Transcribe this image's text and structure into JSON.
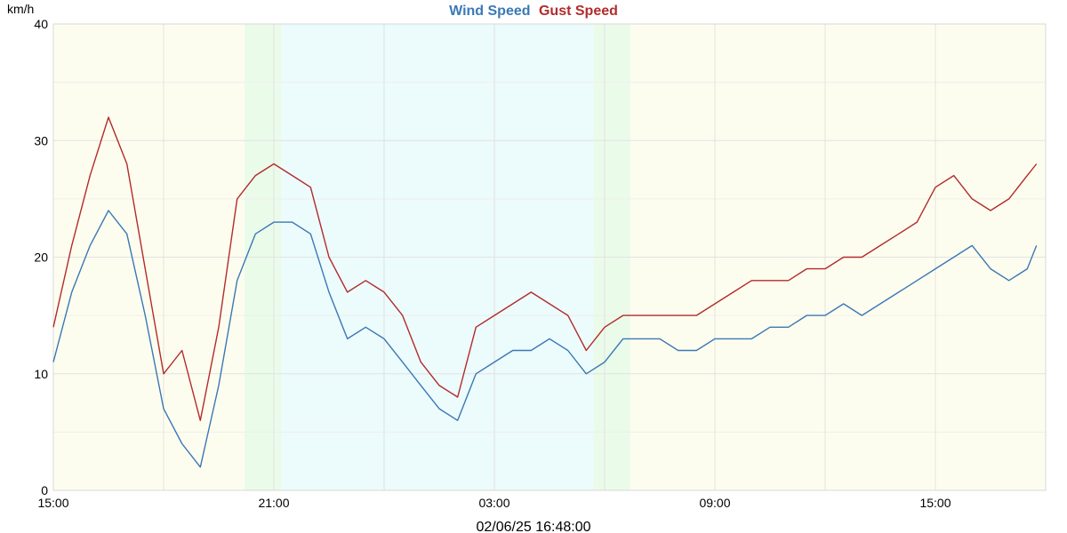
{
  "legend": {
    "wind": "Wind Speed",
    "gust": "Gust Speed"
  },
  "footer": {
    "timestamp": "02/06/25 16:48:00"
  },
  "colors": {
    "wind": "#3a78b5",
    "gust": "#b32b2b",
    "grid": "#e2e2e2",
    "day_band": "#fdfdef",
    "night_band": "#ecfbfb",
    "twilight_band": "#eafbea",
    "axis_text": "#000000"
  },
  "chart_data": {
    "type": "line",
    "title": "",
    "ylabel": "km/h",
    "xlabel": "",
    "ylim": [
      0,
      40
    ],
    "y_ticks": [
      0,
      10,
      20,
      30,
      40
    ],
    "x_range_hours": [
      0,
      27
    ],
    "x_ticks": [
      {
        "hour": 0,
        "label": "15:00"
      },
      {
        "hour": 6,
        "label": "21:00"
      },
      {
        "hour": 12,
        "label": "03:00"
      },
      {
        "hour": 18,
        "label": "09:00"
      },
      {
        "hour": 24,
        "label": "15:00"
      }
    ],
    "x_gridlines_hours": [
      0,
      3,
      6,
      9,
      12,
      15,
      18,
      21,
      24
    ],
    "background_bands": [
      {
        "from": 0,
        "to": 5.2,
        "kind": "day"
      },
      {
        "from": 5.2,
        "to": 6.2,
        "kind": "twilight"
      },
      {
        "from": 6.2,
        "to": 14.7,
        "kind": "night"
      },
      {
        "from": 14.7,
        "to": 15.7,
        "kind": "twilight"
      },
      {
        "from": 15.7,
        "to": 27,
        "kind": "day"
      }
    ],
    "series": [
      {
        "name": "Wind Speed",
        "x": [
          0,
          0.5,
          1,
          1.5,
          2,
          2.5,
          3,
          3.5,
          4,
          4.5,
          5,
          5.5,
          6,
          6.5,
          7,
          7.5,
          8,
          8.5,
          9,
          9.5,
          10,
          10.5,
          11,
          11.5,
          12,
          12.5,
          13,
          13.5,
          14,
          14.5,
          15,
          15.5,
          16,
          16.5,
          17,
          17.5,
          18,
          18.5,
          19,
          19.5,
          20,
          20.5,
          21,
          21.5,
          22,
          22.5,
          23,
          23.5,
          24,
          24.5,
          25,
          25.5,
          26,
          26.5,
          26.75
        ],
        "values": [
          11,
          17,
          21,
          24,
          22,
          15,
          7,
          4,
          2,
          9,
          18,
          22,
          23,
          23,
          22,
          17,
          13,
          14,
          13,
          11,
          9,
          7,
          6,
          10,
          11,
          12,
          12,
          13,
          12,
          10,
          11,
          13,
          13,
          13,
          12,
          12,
          13,
          13,
          13,
          14,
          14,
          15,
          15,
          16,
          15,
          16,
          17,
          18,
          19,
          20,
          21,
          19,
          18,
          19,
          21
        ]
      },
      {
        "name": "Gust Speed",
        "x": [
          0,
          0.5,
          1,
          1.5,
          2,
          2.5,
          3,
          3.5,
          4,
          4.5,
          5,
          5.5,
          6,
          6.5,
          7,
          7.5,
          8,
          8.5,
          9,
          9.5,
          10,
          10.5,
          11,
          11.5,
          12,
          12.5,
          13,
          13.5,
          14,
          14.5,
          15,
          15.5,
          16,
          16.5,
          17,
          17.5,
          18,
          18.5,
          19,
          19.5,
          20,
          20.5,
          21,
          21.5,
          22,
          22.5,
          23,
          23.5,
          24,
          24.5,
          25,
          25.5,
          26,
          26.5,
          26.75
        ],
        "values": [
          14,
          21,
          27,
          32,
          28,
          19,
          10,
          12,
          6,
          14,
          25,
          27,
          28,
          27,
          26,
          20,
          17,
          18,
          17,
          15,
          11,
          9,
          8,
          14,
          15,
          16,
          17,
          16,
          15,
          12,
          14,
          15,
          15,
          15,
          15,
          15,
          16,
          17,
          18,
          18,
          18,
          19,
          19,
          20,
          20,
          21,
          22,
          23,
          26,
          27,
          25,
          24,
          25,
          27,
          28
        ]
      }
    ]
  }
}
